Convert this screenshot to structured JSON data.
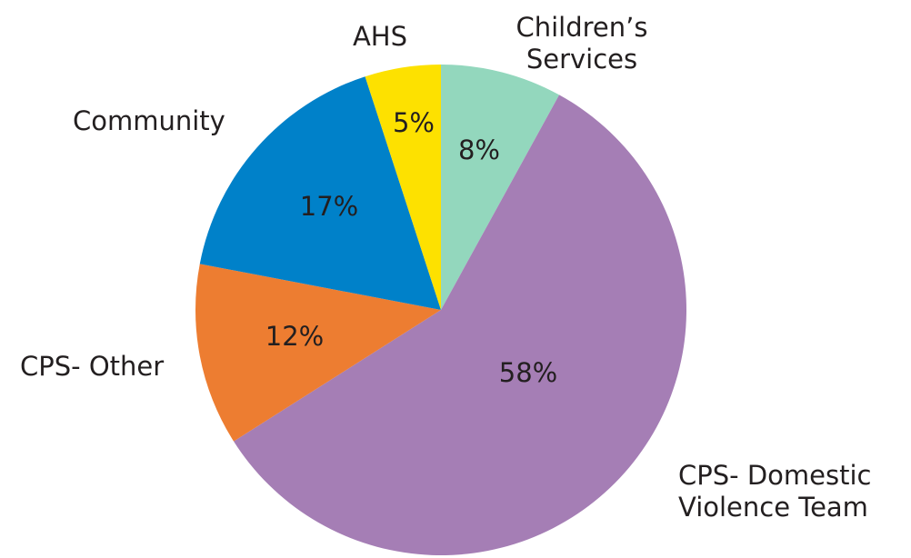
{
  "chart_data": {
    "type": "pie",
    "start_angle_deg": 0,
    "direction": "clockwise",
    "slices": [
      {
        "label": [
          "Children’s",
          "Services"
        ],
        "value": 8,
        "value_label": "8%",
        "color": "#93d7bd"
      },
      {
        "label": [
          "CPS- Domestic",
          "Violence Team"
        ],
        "value": 58,
        "value_label": "58%",
        "color": "#a57eb5"
      },
      {
        "label": [
          "CPS- Other"
        ],
        "value": 12,
        "value_label": "12%",
        "color": "#ed7d31"
      },
      {
        "label": [
          "Community"
        ],
        "value": 17,
        "value_label": "17%",
        "color": "#0081c9"
      },
      {
        "label": [
          "AHS"
        ],
        "value": 5,
        "value_label": "5%",
        "color": "#fde100"
      }
    ],
    "legend": "none"
  }
}
